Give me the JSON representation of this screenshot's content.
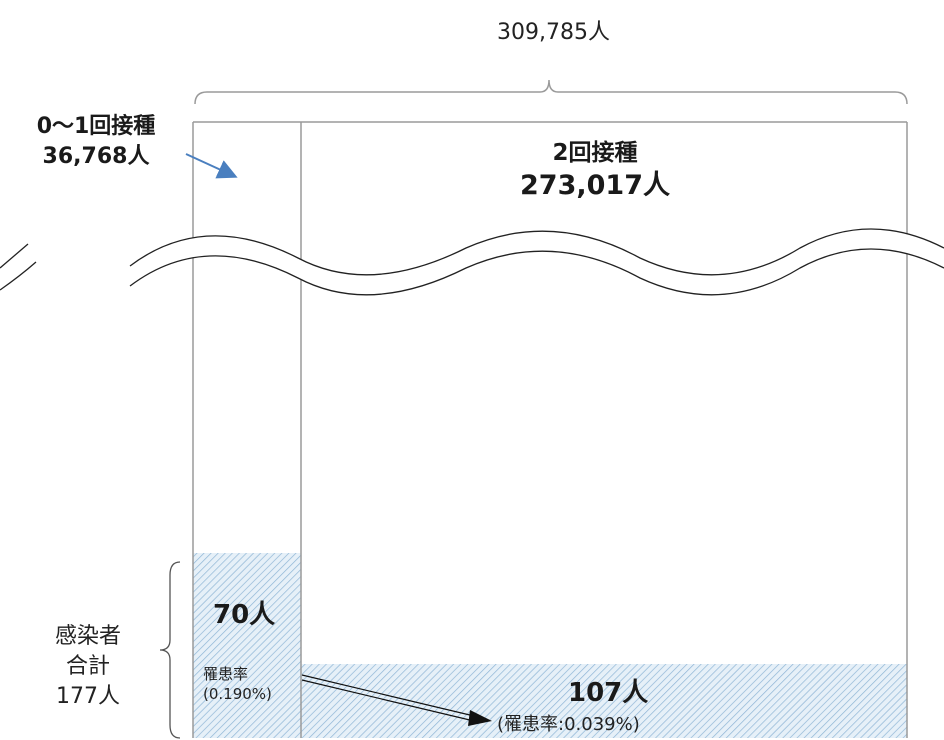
{
  "total": {
    "label": "309,785人"
  },
  "groups": {
    "low": {
      "title": "0〜1回接種",
      "count": "36,768人"
    },
    "full": {
      "title": "2回接種",
      "count": "273,017人"
    }
  },
  "infections": {
    "side_line1": "感染者",
    "side_line2": "合計",
    "side_line3": "177人",
    "low_count": "70人",
    "low_rate_label": "罹患率",
    "low_rate_value": "(0.190%)",
    "full_count": "107人",
    "full_rate": "(罹患率:0.039%)"
  },
  "colors": {
    "box_border": "#9a9a9a",
    "arrow_blue": "#4a7fbf",
    "hatch": "#a8c8e0"
  }
}
